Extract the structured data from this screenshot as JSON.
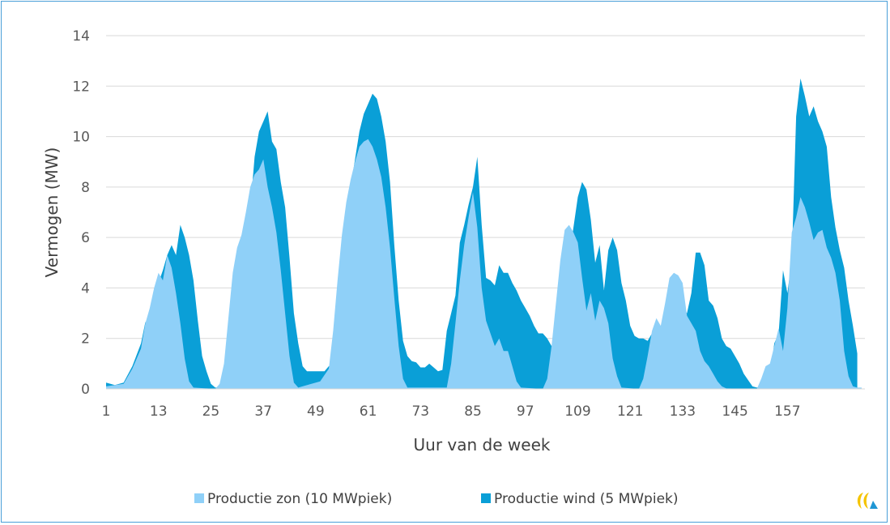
{
  "chart_data": {
    "type": "area",
    "stacked": true,
    "xlabel": "Uur van de week",
    "ylabel": "Vermogen (MW)",
    "ylim": [
      0,
      14
    ],
    "yticks": [
      0,
      2,
      4,
      6,
      8,
      10,
      12,
      14
    ],
    "xlim": [
      1,
      168
    ],
    "xticks": [
      1,
      13,
      25,
      37,
      49,
      61,
      73,
      85,
      97,
      109,
      121,
      133,
      145,
      157
    ],
    "grid": "horizontal",
    "legend_position": "bottom",
    "series": [
      {
        "name": "Productie zon (10 MWpiek)",
        "color": "#8fd0f8",
        "points": [
          [
            1,
            0.1
          ],
          [
            5,
            0.2
          ],
          [
            7,
            0.8
          ],
          [
            9,
            1.6
          ],
          [
            10,
            2.6
          ],
          [
            11,
            3.2
          ],
          [
            12,
            4.0
          ],
          [
            13,
            4.6
          ],
          [
            14,
            4.3
          ],
          [
            15,
            5.3
          ],
          [
            16,
            4.8
          ],
          [
            17,
            3.8
          ],
          [
            18,
            2.6
          ],
          [
            19,
            1.2
          ],
          [
            20,
            0.3
          ],
          [
            21,
            0.05
          ],
          [
            26,
            0
          ],
          [
            27,
            0.2
          ],
          [
            28,
            1.0
          ],
          [
            29,
            2.8
          ],
          [
            30,
            4.6
          ],
          [
            31,
            5.6
          ],
          [
            32,
            6.1
          ],
          [
            33,
            7.0
          ],
          [
            34,
            8.0
          ],
          [
            35,
            8.5
          ],
          [
            36,
            8.7
          ],
          [
            37,
            9.1
          ],
          [
            38,
            8.0
          ],
          [
            39,
            7.2
          ],
          [
            40,
            6.2
          ],
          [
            41,
            4.7
          ],
          [
            42,
            3.0
          ],
          [
            43,
            1.3
          ],
          [
            44,
            0.25
          ],
          [
            45,
            0.05
          ],
          [
            50,
            0.3
          ],
          [
            52,
            0.8
          ],
          [
            53,
            2.3
          ],
          [
            54,
            4.3
          ],
          [
            55,
            6.1
          ],
          [
            56,
            7.4
          ],
          [
            57,
            8.3
          ],
          [
            58,
            9.0
          ],
          [
            59,
            9.6
          ],
          [
            60,
            9.8
          ],
          [
            61,
            9.9
          ],
          [
            62,
            9.6
          ],
          [
            63,
            9.1
          ],
          [
            64,
            8.4
          ],
          [
            65,
            7.2
          ],
          [
            66,
            5.6
          ],
          [
            67,
            3.6
          ],
          [
            68,
            1.7
          ],
          [
            69,
            0.4
          ],
          [
            70,
            0.05
          ],
          [
            79,
            0.05
          ],
          [
            80,
            1.0
          ],
          [
            81,
            2.6
          ],
          [
            82,
            4.3
          ],
          [
            83,
            5.7
          ],
          [
            84,
            6.8
          ],
          [
            85,
            7.8
          ],
          [
            86,
            6.4
          ],
          [
            87,
            4.0
          ],
          [
            88,
            2.7
          ],
          [
            89,
            2.2
          ],
          [
            90,
            1.7
          ],
          [
            91,
            2.0
          ],
          [
            92,
            1.5
          ],
          [
            93,
            1.5
          ],
          [
            94,
            0.9
          ],
          [
            95,
            0.3
          ],
          [
            96,
            0.05
          ],
          [
            101,
            0
          ],
          [
            102,
            0.4
          ],
          [
            103,
            1.7
          ],
          [
            104,
            3.4
          ],
          [
            105,
            5.1
          ],
          [
            106,
            6.3
          ],
          [
            107,
            6.5
          ],
          [
            108,
            6.2
          ],
          [
            109,
            5.8
          ],
          [
            110,
            4.4
          ],
          [
            111,
            3.1
          ],
          [
            112,
            3.8
          ],
          [
            113,
            2.7
          ],
          [
            114,
            3.5
          ],
          [
            115,
            3.2
          ],
          [
            116,
            2.6
          ],
          [
            117,
            1.2
          ],
          [
            118,
            0.5
          ],
          [
            119,
            0.05
          ],
          [
            123,
            0
          ],
          [
            124,
            0.4
          ],
          [
            125,
            1.3
          ],
          [
            126,
            2.3
          ],
          [
            127,
            2.8
          ],
          [
            128,
            2.5
          ],
          [
            129,
            3.4
          ],
          [
            130,
            4.4
          ],
          [
            131,
            4.6
          ],
          [
            132,
            4.5
          ],
          [
            133,
            4.2
          ],
          [
            134,
            2.9
          ],
          [
            135,
            2.6
          ],
          [
            136,
            2.3
          ],
          [
            137,
            1.5
          ],
          [
            138,
            1.1
          ],
          [
            139,
            0.9
          ],
          [
            140,
            0.6
          ],
          [
            141,
            0.3
          ],
          [
            142,
            0.1
          ],
          [
            143,
            0.02
          ],
          [
            150,
            0
          ],
          [
            151,
            0.4
          ],
          [
            152,
            0.9
          ],
          [
            153,
            1.0
          ],
          [
            154,
            1.7
          ],
          [
            155,
            2.4
          ],
          [
            156,
            1.5
          ],
          [
            157,
            3.2
          ],
          [
            158,
            6.2
          ],
          [
            159,
            6.8
          ],
          [
            160,
            7.6
          ],
          [
            161,
            7.2
          ],
          [
            162,
            6.6
          ],
          [
            163,
            5.9
          ],
          [
            164,
            6.2
          ],
          [
            165,
            6.3
          ],
          [
            166,
            5.6
          ],
          [
            167,
            5.2
          ],
          [
            168,
            4.6
          ],
          [
            169,
            3.5
          ],
          [
            170,
            1.5
          ],
          [
            171,
            0.5
          ],
          [
            172,
            0.1
          ],
          [
            173,
            0.05
          ],
          [
            174,
            0.05
          ]
        ]
      },
      {
        "name": "Productie wind (5 MWpiek)",
        "color": "#0a9fd7",
        "points": [
          [
            1,
            0.25
          ],
          [
            3,
            0.15
          ],
          [
            5,
            0.25
          ],
          [
            7,
            0.9
          ],
          [
            9,
            1.8
          ],
          [
            10,
            2.65
          ],
          [
            11,
            2.6
          ],
          [
            12,
            3.5
          ],
          [
            13,
            4.2
          ],
          [
            14,
            4.7
          ],
          [
            15,
            5.3
          ],
          [
            16,
            5.7
          ],
          [
            17,
            5.3
          ],
          [
            18,
            6.5
          ],
          [
            19,
            6.0
          ],
          [
            20,
            5.3
          ],
          [
            21,
            4.3
          ],
          [
            22,
            2.7
          ],
          [
            23,
            1.3
          ],
          [
            24,
            0.7
          ],
          [
            25,
            0.2
          ],
          [
            26,
            0.05
          ],
          [
            29,
            0.05
          ],
          [
            30,
            0.5
          ],
          [
            31,
            2.3
          ],
          [
            32,
            4.2
          ],
          [
            33,
            6.2
          ],
          [
            34,
            7.1
          ],
          [
            35,
            9.2
          ],
          [
            36,
            10.2
          ],
          [
            37,
            10.6
          ],
          [
            38,
            11.0
          ],
          [
            39,
            9.8
          ],
          [
            40,
            9.5
          ],
          [
            41,
            8.2
          ],
          [
            42,
            7.2
          ],
          [
            43,
            5.2
          ],
          [
            44,
            3.0
          ],
          [
            45,
            1.8
          ],
          [
            46,
            0.9
          ],
          [
            47,
            0.7
          ],
          [
            51,
            0.7
          ],
          [
            52,
            0.9
          ],
          [
            53,
            1.0
          ],
          [
            54,
            2.3
          ],
          [
            55,
            4.4
          ],
          [
            56,
            6.4
          ],
          [
            57,
            8.0
          ],
          [
            58,
            9.1
          ],
          [
            59,
            10.2
          ],
          [
            60,
            10.9
          ],
          [
            61,
            11.3
          ],
          [
            62,
            11.7
          ],
          [
            63,
            11.5
          ],
          [
            64,
            10.8
          ],
          [
            65,
            9.8
          ],
          [
            66,
            8.2
          ],
          [
            67,
            5.7
          ],
          [
            68,
            3.5
          ],
          [
            69,
            1.9
          ],
          [
            70,
            1.3
          ],
          [
            71,
            1.1
          ],
          [
            72,
            1.05
          ],
          [
            73,
            0.85
          ],
          [
            74,
            0.85
          ],
          [
            75,
            1.0
          ],
          [
            76,
            0.85
          ],
          [
            77,
            0.7
          ],
          [
            78,
            0.75
          ],
          [
            79,
            2.3
          ],
          [
            80,
            3.0
          ],
          [
            81,
            3.7
          ],
          [
            82,
            5.8
          ],
          [
            83,
            6.5
          ],
          [
            84,
            7.3
          ],
          [
            85,
            8.0
          ],
          [
            86,
            9.2
          ],
          [
            87,
            6.5
          ],
          [
            88,
            4.4
          ],
          [
            89,
            4.3
          ],
          [
            90,
            4.1
          ],
          [
            91,
            4.9
          ],
          [
            92,
            4.6
          ],
          [
            93,
            4.6
          ],
          [
            94,
            4.2
          ],
          [
            95,
            3.9
          ],
          [
            96,
            3.5
          ],
          [
            97,
            3.2
          ],
          [
            98,
            2.9
          ],
          [
            99,
            2.5
          ],
          [
            100,
            2.2
          ],
          [
            101,
            2.2
          ],
          [
            102,
            2.0
          ],
          [
            103,
            1.7
          ],
          [
            104,
            1.8
          ],
          [
            105,
            2.1
          ],
          [
            106,
            3.8
          ],
          [
            107,
            5.2
          ],
          [
            108,
            6.4
          ],
          [
            109,
            7.6
          ],
          [
            110,
            8.2
          ],
          [
            111,
            7.9
          ],
          [
            112,
            6.7
          ],
          [
            113,
            5.0
          ],
          [
            114,
            5.7
          ],
          [
            115,
            3.9
          ],
          [
            116,
            5.5
          ],
          [
            117,
            6.0
          ],
          [
            118,
            5.5
          ],
          [
            119,
            4.2
          ],
          [
            120,
            3.5
          ],
          [
            121,
            2.5
          ],
          [
            122,
            2.1
          ],
          [
            123,
            2.0
          ],
          [
            124,
            2.0
          ],
          [
            125,
            1.9
          ],
          [
            126,
            2.2
          ],
          [
            127,
            2.0
          ],
          [
            128,
            1.5
          ],
          [
            129,
            1.3
          ],
          [
            130,
            1.2
          ],
          [
            131,
            1.8
          ],
          [
            132,
            2.6
          ],
          [
            133,
            3.2
          ],
          [
            134,
            3.0
          ],
          [
            135,
            3.8
          ],
          [
            136,
            5.4
          ],
          [
            137,
            5.4
          ],
          [
            138,
            4.9
          ],
          [
            139,
            3.5
          ],
          [
            140,
            3.3
          ],
          [
            141,
            2.8
          ],
          [
            142,
            2.0
          ],
          [
            143,
            1.7
          ],
          [
            144,
            1.6
          ],
          [
            145,
            1.3
          ],
          [
            146,
            1.0
          ],
          [
            147,
            0.6
          ],
          [
            148,
            0.35
          ],
          [
            149,
            0.1
          ],
          [
            150,
            0.05
          ],
          [
            152,
            0.1
          ],
          [
            153,
            0.5
          ],
          [
            154,
            1.8
          ],
          [
            155,
            2.2
          ],
          [
            156,
            4.7
          ],
          [
            157,
            3.8
          ],
          [
            158,
            5.1
          ],
          [
            159,
            10.8
          ],
          [
            160,
            12.3
          ],
          [
            161,
            11.6
          ],
          [
            162,
            10.8
          ],
          [
            163,
            11.2
          ],
          [
            164,
            10.6
          ],
          [
            165,
            10.2
          ],
          [
            166,
            9.6
          ],
          [
            167,
            7.6
          ],
          [
            168,
            6.4
          ],
          [
            169,
            5.5
          ],
          [
            170,
            4.8
          ],
          [
            171,
            3.5
          ],
          [
            172,
            2.5
          ],
          [
            173,
            1.4
          ]
        ]
      }
    ]
  },
  "legend": {
    "items": [
      {
        "label": "Productie zon (10 MWpiek)",
        "color": "#8fd0f8"
      },
      {
        "label": "Productie wind (5 MWpiek)",
        "color": "#0a9fd7"
      }
    ]
  },
  "logo": {
    "icon": "logo-icon"
  }
}
